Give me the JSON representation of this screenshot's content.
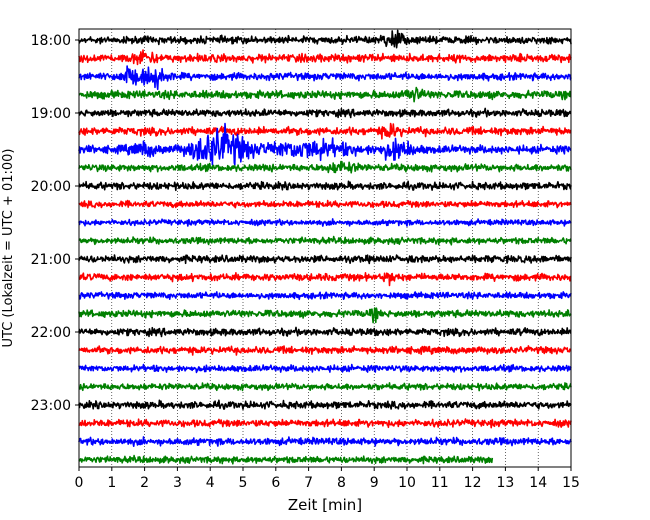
{
  "chart_data": {
    "type": "line",
    "title": "",
    "xlabel": "Zeit  [min]",
    "ylabel": "UTC (Lokalzeit = UTC + 01:00)",
    "xlim": [
      0,
      15
    ],
    "x_ticks": [
      "0",
      "1",
      "2",
      "3",
      "4",
      "5",
      "6",
      "7",
      "8",
      "9",
      "10",
      "11",
      "12",
      "13",
      "14",
      "15"
    ],
    "y_ticks": [
      {
        "label": "18:00",
        "row": 0
      },
      {
        "label": "19:00",
        "row": 4
      },
      {
        "label": "20:00",
        "row": 8
      },
      {
        "label": "21:00",
        "row": 12
      },
      {
        "label": "22:00",
        "row": 16
      },
      {
        "label": "23:00",
        "row": 20
      }
    ],
    "grid": "vertical dotted lines at each minute",
    "row_interval_min": 15,
    "color_cycle": [
      "#000000",
      "#ff0000",
      "#0000ff",
      "#008000"
    ],
    "rows": [
      {
        "start": "18:00",
        "color": "#000000",
        "noise": 0.9,
        "bursts": [
          {
            "t": 9.6,
            "amp": 2.0,
            "dur": 0.6
          }
        ]
      },
      {
        "start": "18:15",
        "color": "#ff0000",
        "noise": 1.0,
        "bursts": [
          {
            "t": 2.0,
            "amp": 1.3,
            "dur": 0.6
          }
        ]
      },
      {
        "start": "18:30",
        "color": "#0000ff",
        "noise": 0.9,
        "bursts": [
          {
            "t": 1.5,
            "amp": 2.2,
            "dur": 0.5
          },
          {
            "t": 2.3,
            "amp": 2.4,
            "dur": 0.7
          }
        ]
      },
      {
        "start": "18:45",
        "color": "#008000",
        "noise": 1.0,
        "bursts": [
          {
            "t": 10.2,
            "amp": 1.4,
            "dur": 0.5
          }
        ]
      },
      {
        "start": "19:00",
        "color": "#000000",
        "noise": 0.9,
        "bursts": []
      },
      {
        "start": "19:15",
        "color": "#ff0000",
        "noise": 1.0,
        "bursts": [
          {
            "t": 9.5,
            "amp": 1.3,
            "dur": 0.5
          }
        ]
      },
      {
        "start": "19:30",
        "color": "#0000ff",
        "noise": 1.0,
        "bursts": [
          {
            "t": 4.3,
            "amp": 4.5,
            "dur": 1.6
          },
          {
            "t": 7.0,
            "amp": 1.8,
            "dur": 2.5
          },
          {
            "t": 9.7,
            "amp": 1.8,
            "dur": 1.0
          },
          {
            "t": 2.0,
            "amp": 1.2,
            "dur": 0.8
          }
        ]
      },
      {
        "start": "19:45",
        "color": "#008000",
        "noise": 0.9,
        "bursts": [
          {
            "t": 8.0,
            "amp": 1.1,
            "dur": 0.8
          }
        ]
      },
      {
        "start": "20:00",
        "color": "#000000",
        "noise": 0.9,
        "bursts": []
      },
      {
        "start": "20:15",
        "color": "#ff0000",
        "noise": 0.8,
        "bursts": []
      },
      {
        "start": "20:30",
        "color": "#0000ff",
        "noise": 0.7,
        "bursts": []
      },
      {
        "start": "20:45",
        "color": "#008000",
        "noise": 0.8,
        "bursts": []
      },
      {
        "start": "21:00",
        "color": "#000000",
        "noise": 0.9,
        "bursts": []
      },
      {
        "start": "21:15",
        "color": "#ff0000",
        "noise": 0.9,
        "bursts": [
          {
            "t": 9.5,
            "amp": 1.2,
            "dur": 0.3
          }
        ]
      },
      {
        "start": "21:30",
        "color": "#0000ff",
        "noise": 0.8,
        "bursts": []
      },
      {
        "start": "21:45",
        "color": "#008000",
        "noise": 0.9,
        "bursts": [
          {
            "t": 9.0,
            "amp": 1.1,
            "dur": 0.3
          }
        ]
      },
      {
        "start": "22:00",
        "color": "#000000",
        "noise": 0.9,
        "bursts": []
      },
      {
        "start": "22:15",
        "color": "#ff0000",
        "noise": 0.9,
        "bursts": []
      },
      {
        "start": "22:30",
        "color": "#0000ff",
        "noise": 0.8,
        "bursts": []
      },
      {
        "start": "22:45",
        "color": "#008000",
        "noise": 0.8,
        "bursts": []
      },
      {
        "start": "23:00",
        "color": "#000000",
        "noise": 0.9,
        "bursts": []
      },
      {
        "start": "23:15",
        "color": "#ff0000",
        "noise": 0.9,
        "bursts": []
      },
      {
        "start": "23:30",
        "color": "#0000ff",
        "noise": 0.9,
        "bursts": []
      },
      {
        "start": "23:45",
        "color": "#008000",
        "noise": 0.8,
        "bursts": [],
        "end_min": 12.6
      }
    ]
  }
}
